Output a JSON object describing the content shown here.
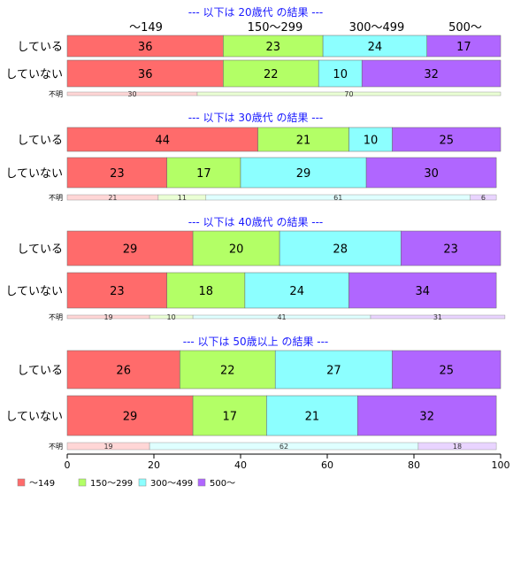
{
  "chart_data": {
    "type": "bar",
    "orientation": "horizontal",
    "stacked": true,
    "normalized_percent": true,
    "xlim": [
      0,
      100
    ],
    "xticks": [
      "0",
      "20",
      "40",
      "60",
      "80",
      "100"
    ],
    "legend_position": "bottom-left",
    "categories_header": [
      "～149",
      "150～299",
      "300～499",
      "500～"
    ],
    "series": [
      {
        "name": "～149",
        "color": "#ff6b6b"
      },
      {
        "name": "150～299",
        "color": "#b3ff66"
      },
      {
        "name": "300～499",
        "color": "#8cffff"
      },
      {
        "name": "500～",
        "color": "#b066ff"
      }
    ],
    "panels": [
      {
        "title": "--- 以下は 20歳代 の結果 ---",
        "rows": [
          {
            "label": "している",
            "values": [
              36,
              23,
              24,
              17
            ]
          },
          {
            "label": "していない",
            "values": [
              36,
              22,
              10,
              32
            ]
          }
        ],
        "unknown": {
          "label": "不明",
          "values": [
            30,
            70,
            null,
            null
          ]
        }
      },
      {
        "title": "--- 以下は 30歳代 の結果 ---",
        "rows": [
          {
            "label": "している",
            "values": [
              44,
              21,
              10,
              25
            ]
          },
          {
            "label": "していない",
            "values": [
              23,
              17,
              29,
              30
            ]
          }
        ],
        "unknown": {
          "label": "不明",
          "values": [
            21,
            11,
            61,
            6
          ]
        }
      },
      {
        "title": "--- 以下は 40歳代 の結果 ---",
        "rows": [
          {
            "label": "している",
            "values": [
              29,
              20,
              28,
              23
            ]
          },
          {
            "label": "していない",
            "values": [
              23,
              18,
              24,
              34
            ]
          }
        ],
        "unknown": {
          "label": "不明",
          "values": [
            19,
            10,
            41,
            31
          ]
        }
      },
      {
        "title": "--- 以下は 50歳以上 の結果 ---",
        "rows": [
          {
            "label": "している",
            "values": [
              26,
              22,
              27,
              25
            ]
          },
          {
            "label": "していない",
            "values": [
              29,
              17,
              21,
              32
            ]
          }
        ],
        "unknown": {
          "label": "不明",
          "values": [
            19,
            null,
            62,
            18
          ]
        }
      }
    ]
  }
}
